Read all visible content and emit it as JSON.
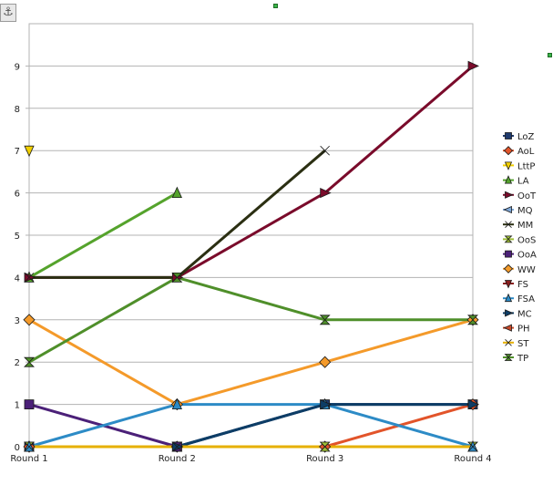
{
  "chart_data": {
    "type": "line",
    "title": "",
    "xlabel": "",
    "ylabel": "",
    "categories": [
      "Round 1",
      "Round 2",
      "Round 3",
      "Round 4"
    ],
    "ylim": [
      0,
      10
    ],
    "yticks": [
      0,
      1,
      2,
      3,
      4,
      5,
      6,
      7,
      8,
      9
    ],
    "grid": true,
    "legend": "right",
    "series": [
      {
        "name": "LoZ",
        "color": "#1f3a6d",
        "marker": "square",
        "values": [
          0,
          0,
          1,
          1
        ]
      },
      {
        "name": "AoL",
        "color": "#e2542a",
        "marker": "diamond",
        "values": [
          0,
          0,
          0,
          1
        ]
      },
      {
        "name": "LttP",
        "color": "#f2d000",
        "marker": "triangle-down",
        "values": [
          7,
          null,
          null,
          null
        ]
      },
      {
        "name": "LA",
        "color": "#55a32c",
        "marker": "triangle-up",
        "values": [
          4,
          6,
          null,
          null
        ]
      },
      {
        "name": "OoT",
        "color": "#7a0b2b",
        "marker": "triangle-right",
        "values": [
          4,
          4,
          6,
          9
        ]
      },
      {
        "name": "MQ",
        "color": "#7fa8d8",
        "marker": "triangle-left",
        "values": [
          null,
          null,
          null,
          null
        ]
      },
      {
        "name": "MM",
        "color": "#2b2f12",
        "marker": "bowtie",
        "values": [
          4,
          4,
          7,
          null
        ]
      },
      {
        "name": "OoS",
        "color": "#9ebe36",
        "marker": "hourglass",
        "values": [
          0,
          0,
          0,
          0
        ]
      },
      {
        "name": "OoA",
        "color": "#4b2078",
        "marker": "square",
        "values": [
          1,
          0,
          null,
          null
        ]
      },
      {
        "name": "WW",
        "color": "#f49a2a",
        "marker": "diamond",
        "values": [
          3,
          1,
          2,
          3
        ]
      },
      {
        "name": "FS",
        "color": "#8a1e1e",
        "marker": "triangle-down",
        "values": [
          null,
          null,
          null,
          null
        ]
      },
      {
        "name": "FSA",
        "color": "#2d8bc6",
        "marker": "triangle-up",
        "values": [
          0,
          1,
          1,
          0
        ]
      },
      {
        "name": "MC",
        "color": "#0d3d66",
        "marker": "triangle-right",
        "values": [
          null,
          0,
          1,
          1
        ]
      },
      {
        "name": "PH",
        "color": "#c94a2a",
        "marker": "triangle-left",
        "values": [
          null,
          null,
          null,
          null
        ]
      },
      {
        "name": "ST",
        "color": "#e6b000",
        "marker": "bowtie",
        "values": [
          0,
          0,
          0,
          0
        ]
      },
      {
        "name": "TP",
        "color": "#4f8f2a",
        "marker": "hourglass",
        "values": [
          2,
          4,
          3,
          3
        ]
      }
    ]
  },
  "ui": {
    "anchor_icon": "anchor-icon",
    "anchor_glyph": "⚓",
    "handle_color": "#39b54a"
  }
}
